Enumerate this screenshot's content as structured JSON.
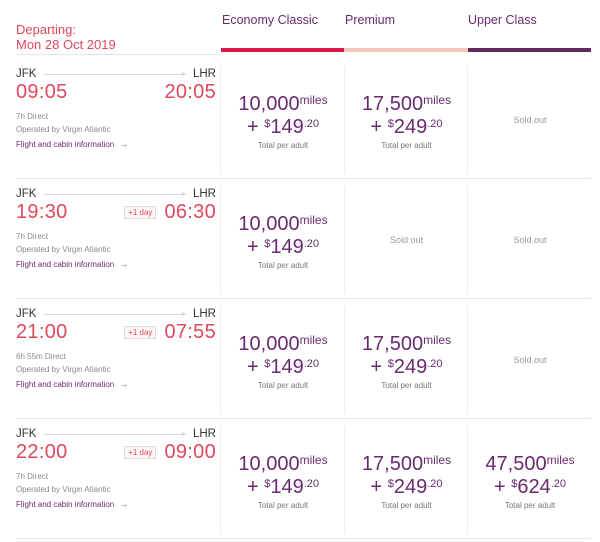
{
  "header": {
    "departing_label": "Departing:",
    "date": "Mon 28 Oct 2019",
    "columns": [
      {
        "label": "Economy Classic",
        "color": "#d8194a"
      },
      {
        "label": "Premium",
        "color": "#f2c9b8"
      },
      {
        "label": "Upper Class",
        "color": "#5e2a60"
      }
    ]
  },
  "flights": [
    {
      "from": "JFK",
      "to": "LHR",
      "depart": "09:05",
      "arrive": "20:05",
      "plus_day": "",
      "duration": "7h Direct",
      "operator": "Operated by Virgin Atlantic",
      "info_link": "Flight and cabin information",
      "fares": [
        {
          "miles": "10,000",
          "unit": "miles",
          "plus": "+ ",
          "currency": "$",
          "dollars": "149",
          "cents": ".20",
          "per": "Total per adult"
        },
        {
          "miles": "17,500",
          "unit": "miles",
          "plus": "+ ",
          "currency": "$",
          "dollars": "249",
          "cents": ".20",
          "per": "Total per adult"
        },
        {
          "sold_out": "Sold out"
        }
      ]
    },
    {
      "from": "JFK",
      "to": "LHR",
      "depart": "19:30",
      "arrive": "06:30",
      "plus_day": "+1 day",
      "duration": "7h Direct",
      "operator": "Operated by Virgin Atlantic",
      "info_link": "Flight and cabin information",
      "fares": [
        {
          "miles": "10,000",
          "unit": "miles",
          "plus": "+ ",
          "currency": "$",
          "dollars": "149",
          "cents": ".20",
          "per": "Total per adult"
        },
        {
          "sold_out": "Sold out"
        },
        {
          "sold_out": "Sold out"
        }
      ]
    },
    {
      "from": "JFK",
      "to": "LHR",
      "depart": "21:00",
      "arrive": "07:55",
      "plus_day": "+1 day",
      "duration": "6h 55m Direct",
      "operator": "Operated by Virgin Atlantic",
      "info_link": "Flight and cabin information",
      "fares": [
        {
          "miles": "10,000",
          "unit": "miles",
          "plus": "+ ",
          "currency": "$",
          "dollars": "149",
          "cents": ".20",
          "per": "Total per adult"
        },
        {
          "miles": "17,500",
          "unit": "miles",
          "plus": "+ ",
          "currency": "$",
          "dollars": "249",
          "cents": ".20",
          "per": "Total per adult"
        },
        {
          "sold_out": "Sold out"
        }
      ]
    },
    {
      "from": "JFK",
      "to": "LHR",
      "depart": "22:00",
      "arrive": "09:00",
      "plus_day": "+1 day",
      "duration": "7h Direct",
      "operator": "Operated by Virgin Atlantic",
      "info_link": "Flight and cabin information",
      "fares": [
        {
          "miles": "10,000",
          "unit": "miles",
          "plus": "+ ",
          "currency": "$",
          "dollars": "149",
          "cents": ".20",
          "per": "Total per adult"
        },
        {
          "miles": "17,500",
          "unit": "miles",
          "plus": "+ ",
          "currency": "$",
          "dollars": "249",
          "cents": ".20",
          "per": "Total per adult"
        },
        {
          "miles": "47,500",
          "unit": "miles",
          "plus": "+ ",
          "currency": "$",
          "dollars": "624",
          "cents": ".20",
          "per": "Total per adult"
        }
      ]
    }
  ]
}
